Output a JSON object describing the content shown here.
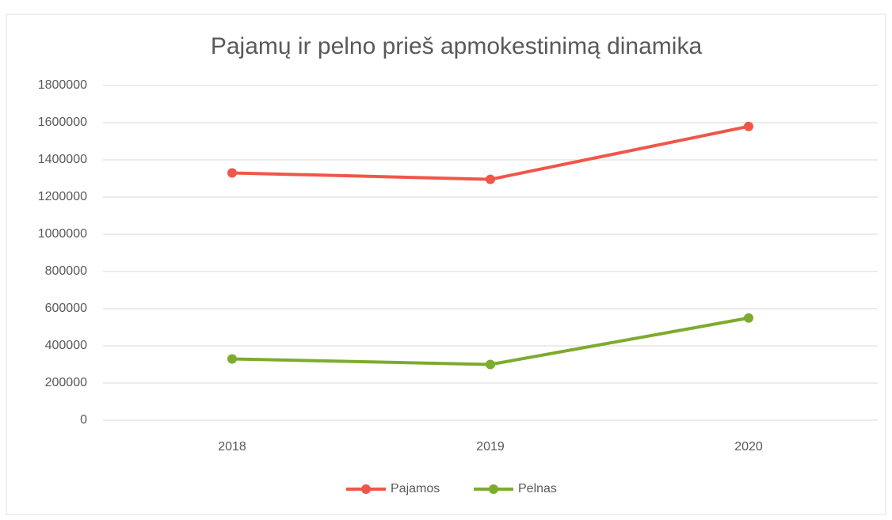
{
  "chart_data": {
    "type": "line",
    "title": "Pajamų ir pelno prieš apmokestinimą dinamika",
    "categories": [
      "2018",
      "2019",
      "2020"
    ],
    "series": [
      {
        "name": "Pajamos",
        "color": "#f0564a",
        "values": [
          1330000,
          1295000,
          1580000
        ]
      },
      {
        "name": "Pelnas",
        "color": "#7dab2e",
        "values": [
          330000,
          300000,
          550000
        ]
      }
    ],
    "ylim": [
      0,
      1800000
    ],
    "yticks": [
      0,
      200000,
      400000,
      600000,
      800000,
      1000000,
      1200000,
      1400000,
      1600000,
      1800000
    ],
    "grid": true,
    "legend": "bottom"
  }
}
